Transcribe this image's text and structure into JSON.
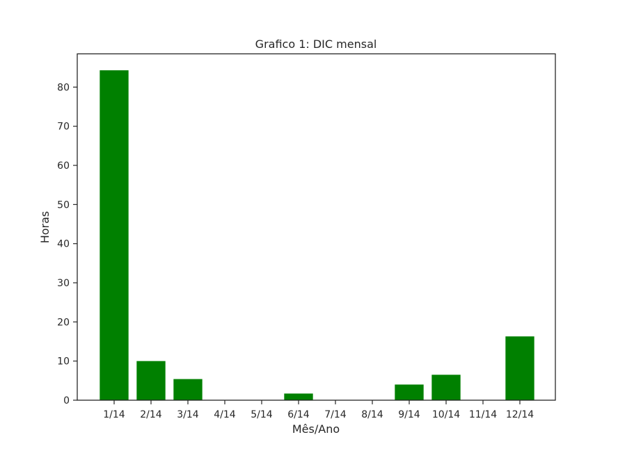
{
  "chart_data": {
    "type": "bar",
    "title": "Grafico 1: DIC mensal",
    "xlabel": "Mês/Ano",
    "ylabel": "Horas",
    "categories": [
      "1/14",
      "2/14",
      "3/14",
      "4/14",
      "5/14",
      "6/14",
      "7/14",
      "8/14",
      "9/14",
      "10/14",
      "11/14",
      "12/14"
    ],
    "values": [
      84.3,
      10.0,
      5.4,
      0,
      0,
      1.7,
      0,
      0,
      4.0,
      6.5,
      0,
      16.3
    ],
    "ylim": [
      0,
      88.5
    ],
    "yticks": [
      0,
      10,
      20,
      30,
      40,
      50,
      60,
      70,
      80
    ],
    "bar_color": "#008000",
    "grid": false,
    "legend": "none"
  }
}
